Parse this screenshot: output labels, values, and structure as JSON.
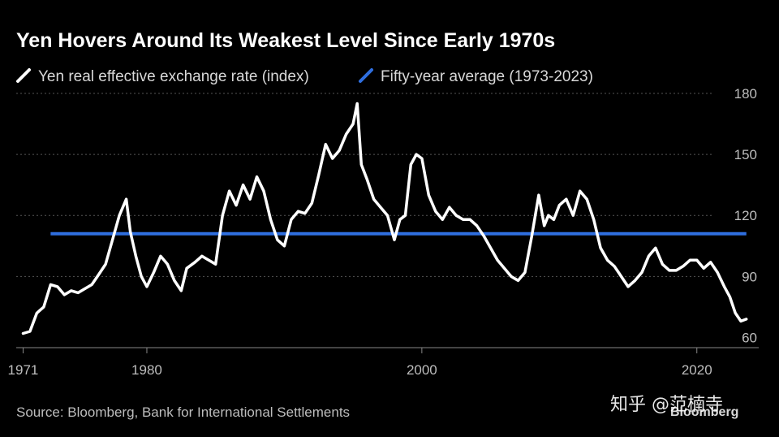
{
  "chart_data": {
    "type": "line",
    "title": "Yen Hovers Around Its Weakest Level Since Early 1970s",
    "source": "Source: Bloomberg, Bank for International Settlements",
    "ylim": [
      55,
      182
    ],
    "xlim": [
      1970.5,
      2024.5
    ],
    "yticks": [
      60,
      90,
      120,
      150,
      180
    ],
    "xticks": [
      1971,
      1980,
      2000,
      2020
    ],
    "grid": true,
    "legend_position": "top-left",
    "colors": {
      "series": "#ffffff",
      "average": "#2f6fe0",
      "grid": "#555555",
      "axis": "#888888"
    },
    "series": [
      {
        "name": "Yen real effective exchange rate (index)",
        "x": [
          1971.0,
          1971.5,
          1972.0,
          1972.5,
          1973.0,
          1973.5,
          1974.0,
          1974.5,
          1975.0,
          1975.5,
          1976.0,
          1976.5,
          1977.0,
          1977.5,
          1978.0,
          1978.5,
          1978.8,
          1979.2,
          1979.6,
          1980.0,
          1980.5,
          1981.0,
          1981.5,
          1982.0,
          1982.5,
          1982.9,
          1983.5,
          1984.0,
          1984.5,
          1985.0,
          1985.5,
          1986.0,
          1986.5,
          1987.0,
          1987.5,
          1988.0,
          1988.5,
          1989.0,
          1989.5,
          1990.0,
          1990.5,
          1991.0,
          1991.5,
          1992.0,
          1992.5,
          1993.0,
          1993.5,
          1994.0,
          1994.5,
          1995.0,
          1995.3,
          1995.6,
          1996.0,
          1996.5,
          1997.0,
          1997.5,
          1998.0,
          1998.4,
          1998.8,
          1999.2,
          1999.6,
          2000.0,
          2000.5,
          2001.0,
          2001.5,
          2002.0,
          2002.5,
          2003.0,
          2003.5,
          2004.0,
          2004.5,
          2005.0,
          2005.5,
          2006.0,
          2006.5,
          2007.0,
          2007.5,
          2008.0,
          2008.5,
          2008.9,
          2009.2,
          2009.6,
          2010.0,
          2010.5,
          2011.0,
          2011.5,
          2012.0,
          2012.5,
          2013.0,
          2013.5,
          2014.0,
          2014.5,
          2015.0,
          2015.5,
          2016.0,
          2016.5,
          2017.0,
          2017.5,
          2018.0,
          2018.5,
          2019.0,
          2019.5,
          2020.0,
          2020.5,
          2021.0,
          2021.5,
          2022.0,
          2022.4,
          2022.8,
          2023.2,
          2023.6
        ],
        "y": [
          62,
          63,
          72,
          75,
          86,
          85,
          81,
          83,
          82,
          84,
          86,
          91,
          96,
          108,
          120,
          128,
          112,
          100,
          90,
          85,
          92,
          100,
          96,
          88,
          83,
          94,
          97,
          100,
          98,
          96,
          120,
          132,
          125,
          135,
          128,
          139,
          132,
          118,
          108,
          105,
          118,
          122,
          121,
          126,
          140,
          155,
          148,
          152,
          160,
          165,
          175,
          145,
          138,
          128,
          124,
          120,
          108,
          118,
          120,
          145,
          150,
          148,
          130,
          122,
          118,
          124,
          120,
          118,
          118,
          115,
          110,
          104,
          98,
          94,
          90,
          88,
          92,
          110,
          130,
          115,
          120,
          118,
          125,
          128,
          120,
          132,
          128,
          118,
          104,
          98,
          95,
          90,
          85,
          88,
          92,
          100,
          104,
          96,
          93,
          93,
          95,
          98,
          98,
          94,
          97,
          92,
          85,
          80,
          72,
          68,
          69
        ]
      },
      {
        "name": "Fifty-year average (1973-2023)",
        "x": [
          1973.0,
          2023.6
        ],
        "y": [
          111,
          111
        ]
      }
    ]
  },
  "watermark": {
    "text": "知乎 @范楠寺",
    "brand": "Bloomberg"
  }
}
